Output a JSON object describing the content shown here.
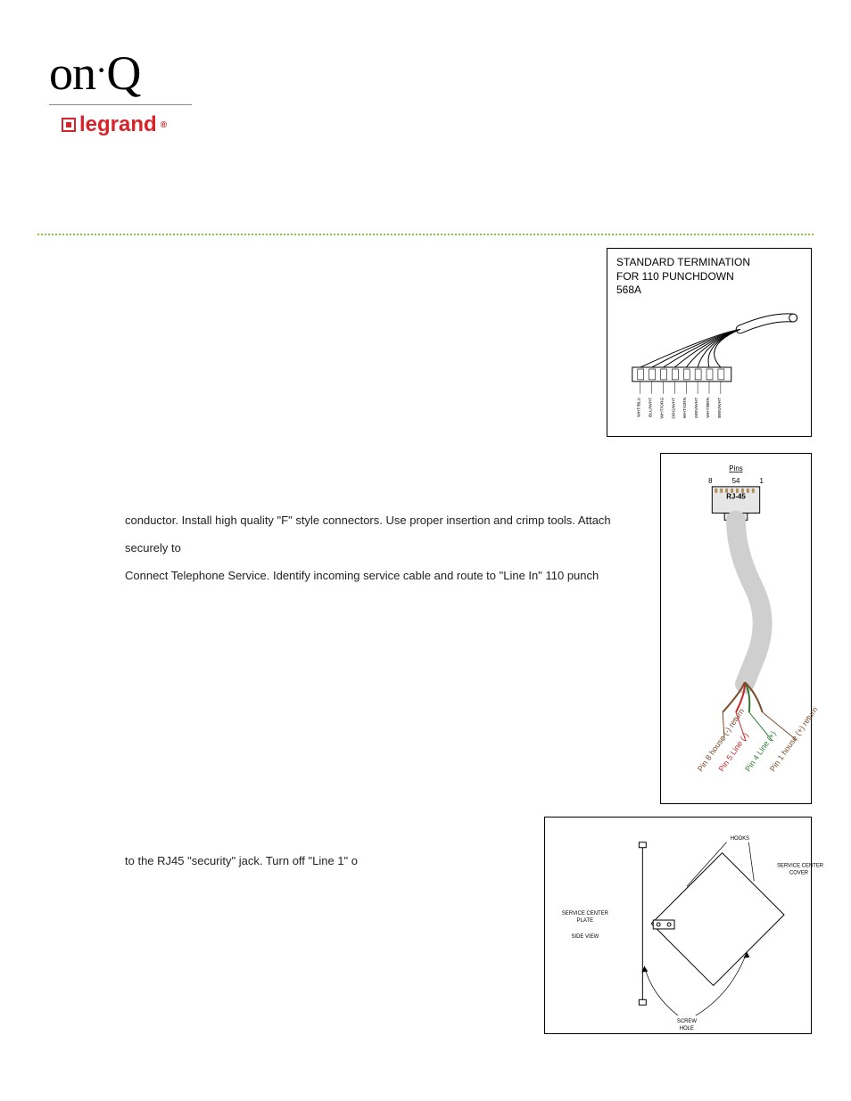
{
  "logo": {
    "onq_on": "on",
    "onq_dot": "·",
    "onq_q": "Q",
    "legrand": "legrand"
  },
  "body": {
    "line1": "conductor. Install high quality \"F\" style connectors. Use proper insertion and crimp tools. Attach securely to",
    "line2": "Connect Telephone Service. Identify incoming service cable and route to \"Line In\" 110 punch",
    "line3": "to the RJ45 \"security\" jack. Turn off \"Line 1\" o"
  },
  "fig1": {
    "title_l1": "STANDARD TERMINATION",
    "title_l2": "FOR 110 PUNCHDOWN",
    "title_l3": "568A",
    "wire_labels": [
      "WHT/BLU",
      "BLU/WHT",
      "WHT/ORG",
      "ORG/WHT",
      "WHT/GRN",
      "GRN/WHT",
      "WHT/BRN",
      "BRN/WHT"
    ],
    "colors": {
      "cable_outline": "#000000",
      "wire": "#000000",
      "leader": "#000000"
    }
  },
  "fig2": {
    "pins_label": "Pins",
    "pin_8": "8",
    "pin_54": "54",
    "pin_1": "1",
    "rj45": "RJ-45",
    "diag_labels": [
      {
        "text": "Pin 8 house (-) return",
        "color": "#7a4a2a"
      },
      {
        "text": "Pin 5 Line (-)",
        "color": "#c62828"
      },
      {
        "text": "Pin 4 Line (+)",
        "color": "#2e7d32"
      },
      {
        "text": "Pin 1 house (+) return",
        "color": "#7a4a2a"
      }
    ],
    "cable_color": "#cfcfcf",
    "plug_fill": "#e6e6e6"
  },
  "fig3": {
    "hooks": "HOOKS",
    "cover": "SERVICE CENTER\nCOVER",
    "plate": "SERVICE CENTER\nPLATE",
    "side_view": "SIDE VIEW",
    "screw_hole": "SCREW\nHOLE",
    "stroke": "#000000"
  }
}
